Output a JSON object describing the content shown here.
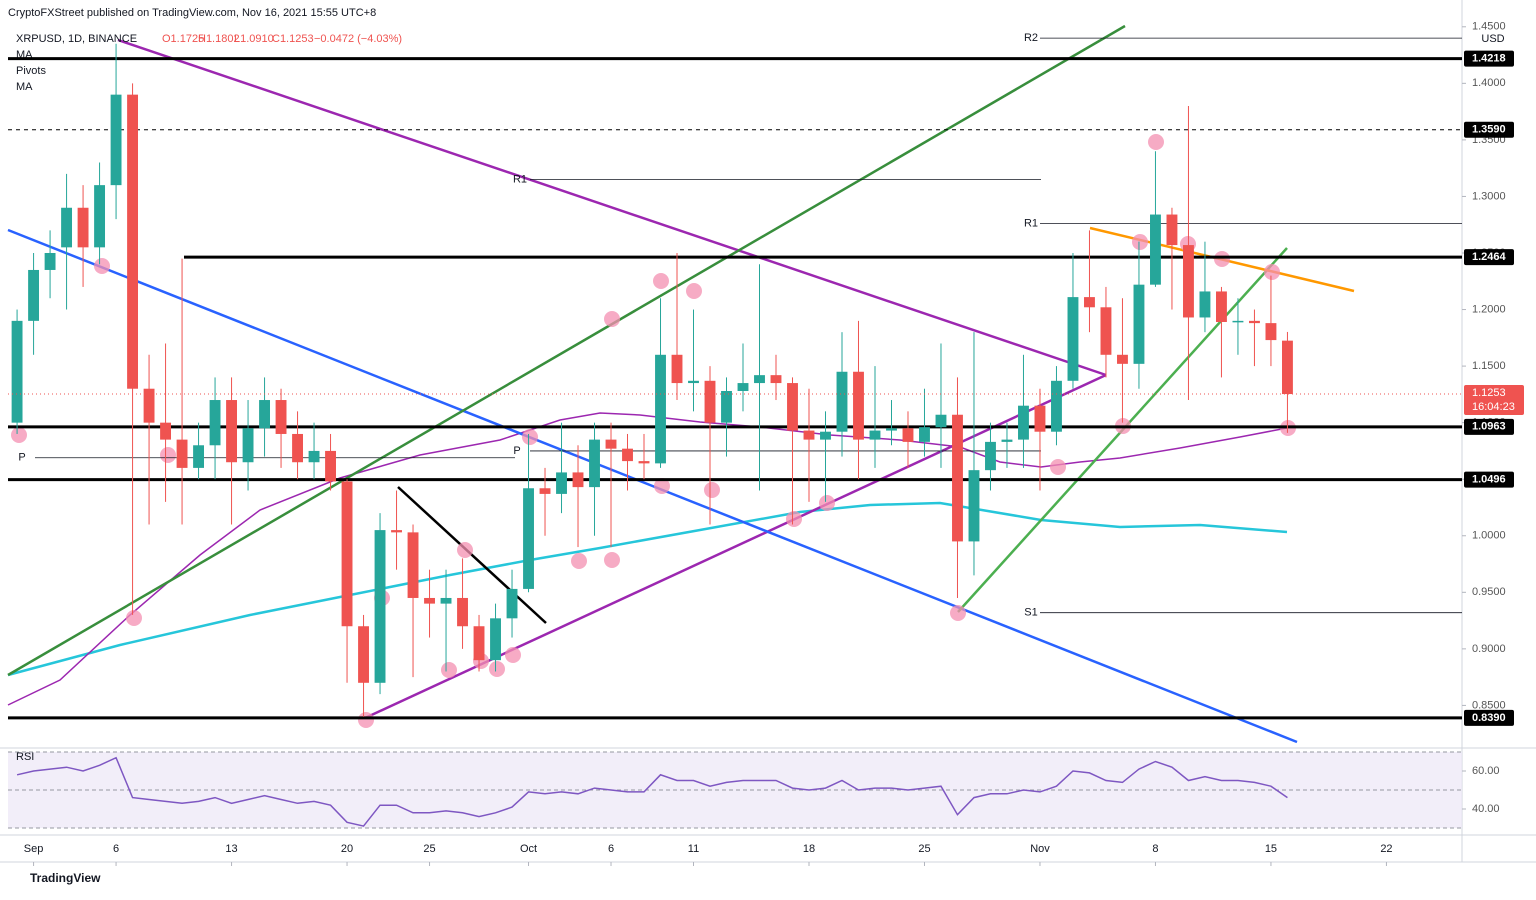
{
  "header": {
    "publisher": "CryptoFXStreet published on TradingView.com, Nov 16, 2021 15:55 UTC+8",
    "symbol": "XRPUSD, 1D, BINANCE",
    "open": "O1.1725",
    "high": "H1.1802",
    "low": "L1.0910",
    "close": "C1.1253",
    "change": "−0.0472 (−4.03%)",
    "indicators": [
      "MA",
      "Pivots",
      "MA"
    ],
    "currency": "USD",
    "footer": "TradingView"
  },
  "chart_data": [
    {
      "type": "candlestick",
      "title": "XRPUSD",
      "up_color": "#26a69a",
      "down_color": "#ef5350",
      "open": [
        1.1,
        1.19,
        1.235,
        1.255,
        1.29,
        1.255,
        1.31,
        1.39,
        1.13,
        1.1,
        1.085,
        1.06,
        1.08,
        1.12,
        1.065,
        1.095,
        1.12,
        1.09,
        1.065,
        1.075,
        1.048,
        0.92,
        0.87,
        1.005,
        1.003,
        0.945,
        0.94,
        0.945,
        0.92,
        0.89,
        0.927,
        0.953,
        1.042,
        1.037,
        1.056,
        1.043,
        1.085,
        1.077,
        1.066,
        1.064,
        1.16,
        1.135,
        1.137,
        1.1,
        1.128,
        1.135,
        1.142,
        1.135,
        1.093,
        1.085,
        1.092,
        1.145,
        1.085,
        1.093,
        1.095,
        1.083,
        1.096,
        1.107,
        0.995,
        1.058,
        1.083,
        1.085,
        1.115,
        1.092,
        1.137,
        1.211,
        1.202,
        1.16,
        1.152,
        1.222,
        1.284,
        1.257,
        1.193,
        1.216,
        1.189,
        1.19,
        1.188,
        1.1725
      ],
      "high": [
        1.2,
        1.25,
        1.27,
        1.32,
        1.31,
        1.33,
        1.435,
        1.4,
        1.16,
        1.17,
        1.245,
        1.1,
        1.14,
        1.14,
        1.12,
        1.14,
        1.13,
        1.11,
        1.1,
        1.09,
        1.05,
        0.93,
        1.02,
        1.04,
        1.01,
        0.97,
        0.97,
        0.98,
        0.93,
        0.94,
        0.97,
        1.09,
        1.06,
        1.1,
        1.08,
        1.1,
        1.1,
        1.09,
        1.09,
        1.21,
        1.25,
        1.2,
        1.15,
        1.14,
        1.17,
        1.24,
        1.16,
        1.14,
        1.13,
        1.11,
        1.18,
        1.19,
        1.15,
        1.12,
        1.11,
        1.13,
        1.17,
        1.14,
        1.18,
        1.1,
        1.1,
        1.16,
        1.13,
        1.15,
        1.25,
        1.27,
        1.22,
        1.21,
        1.26,
        1.34,
        1.29,
        1.38,
        1.26,
        1.22,
        1.21,
        1.2,
        1.23,
        1.1802
      ],
      "low": [
        1.09,
        1.16,
        1.21,
        1.2,
        1.22,
        1.24,
        1.28,
        0.93,
        1.01,
        1.03,
        1.01,
        1.05,
        1.05,
        1.01,
        1.04,
        1.07,
        1.06,
        1.05,
        1.05,
        1.04,
        0.87,
        0.84,
        0.86,
        0.97,
        0.875,
        0.91,
        0.88,
        0.9,
        0.88,
        0.88,
        0.91,
        0.95,
        1.0,
        1.02,
        0.99,
        1.0,
        0.99,
        1.04,
        1.05,
        1.06,
        1.12,
        1.11,
        1.01,
        1.07,
        1.11,
        1.04,
        1.12,
        1.01,
        1.03,
        1.03,
        1.07,
        1.05,
        1.06,
        1.08,
        1.06,
        1.07,
        1.06,
        0.945,
        0.965,
        1.04,
        1.06,
        1.06,
        1.04,
        1.08,
        1.13,
        1.18,
        1.14,
        1.1,
        1.13,
        1.22,
        1.2,
        1.12,
        1.18,
        1.14,
        1.16,
        1.15,
        1.15,
        1.091
      ],
      "close": [
        1.19,
        1.235,
        1.25,
        1.29,
        1.255,
        1.31,
        1.39,
        1.13,
        1.1,
        1.085,
        1.06,
        1.08,
        1.12,
        1.065,
        1.095,
        1.12,
        1.09,
        1.065,
        1.075,
        1.048,
        0.92,
        0.87,
        1.005,
        1.003,
        0.945,
        0.94,
        0.945,
        0.92,
        0.89,
        0.927,
        0.953,
        1.042,
        1.037,
        1.056,
        1.043,
        1.085,
        1.077,
        1.066,
        1.064,
        1.16,
        1.135,
        1.137,
        1.1,
        1.128,
        1.135,
        1.142,
        1.135,
        1.093,
        1.085,
        1.092,
        1.145,
        1.085,
        1.093,
        1.095,
        1.083,
        1.096,
        1.107,
        0.995,
        1.058,
        1.083,
        1.085,
        1.115,
        1.092,
        1.137,
        1.211,
        1.202,
        1.16,
        1.152,
        1.222,
        1.284,
        1.257,
        1.193,
        1.216,
        1.189,
        1.19,
        1.188,
        1.173,
        1.1253
      ],
      "xlim": [
        -0.55,
        87.58
      ],
      "xticks": [
        {
          "value": 1,
          "label": "Sep"
        },
        {
          "value": 6,
          "label": "6"
        },
        {
          "value": 13,
          "label": "13"
        },
        {
          "value": 20,
          "label": "20"
        },
        {
          "value": 25,
          "label": "25"
        },
        {
          "value": 31,
          "label": "Oct"
        },
        {
          "value": 36,
          "label": "6"
        },
        {
          "value": 41,
          "label": "11"
        },
        {
          "value": 48,
          "label": "18"
        },
        {
          "value": 55,
          "label": "25"
        },
        {
          "value": 62,
          "label": "Nov"
        },
        {
          "value": 69,
          "label": "8"
        },
        {
          "value": 76,
          "label": "15"
        },
        {
          "value": 83,
          "label": "22"
        }
      ],
      "ylim": [
        0.815,
        1.456
      ],
      "yticks": [
        {
          "value": 0.85,
          "label": "0.8500"
        },
        {
          "value": 0.9,
          "label": "0.9000"
        },
        {
          "value": 0.95,
          "label": "0.9500"
        },
        {
          "value": 1.0,
          "label": "1.0000"
        },
        {
          "value": 1.05,
          "label": "1.0500"
        },
        {
          "value": 1.1,
          "label": "1.1000"
        },
        {
          "value": 1.15,
          "label": "1.1500"
        },
        {
          "value": 1.2,
          "label": "1.2000"
        },
        {
          "value": 1.25,
          "label": "1.2500"
        },
        {
          "value": 1.3,
          "label": "1.3000"
        },
        {
          "value": 1.35,
          "label": "1.3500"
        },
        {
          "value": 1.4,
          "label": "1.4000"
        },
        {
          "value": 1.45,
          "label": "1.4500"
        }
      ],
      "levels": [
        {
          "value": 1.4218,
          "label": "1.4218"
        },
        {
          "value": 1.359,
          "label": "1.3590"
        },
        {
          "value": 1.2464,
          "label": "1.2464"
        },
        {
          "value": 1.0963,
          "label": "1.0963"
        },
        {
          "value": 1.0496,
          "label": "1.0496"
        },
        {
          "value": 0.839,
          "label": "0.8390"
        }
      ],
      "pivots": [
        {
          "name": "R2",
          "value": 1.44
        },
        {
          "name": "R1",
          "value": 1.315
        },
        {
          "name": "R1",
          "value": 1.276
        },
        {
          "name": "P",
          "value": 1.069
        },
        {
          "name": "P",
          "value": 1.075
        },
        {
          "name": "S1",
          "value": 0.932
        }
      ],
      "last_price": {
        "value": 1.1253,
        "label": "1.1253"
      },
      "countdown": "16:04:23"
    },
    {
      "type": "line",
      "title": "RSI",
      "color": "#7e57c2",
      "values": [
        58,
        60,
        61,
        62,
        60,
        63,
        67,
        46,
        45,
        44,
        43,
        44,
        46,
        43,
        45,
        47,
        45,
        43,
        44,
        42,
        33,
        31,
        42,
        42,
        38,
        38,
        39,
        38,
        36,
        38,
        41,
        49,
        48,
        49,
        48,
        51,
        50,
        49,
        49,
        58,
        55,
        55,
        52,
        54,
        55,
        55,
        55,
        51,
        50,
        51,
        55,
        50,
        51,
        51,
        50,
        51,
        52,
        37,
        46,
        48,
        48,
        50,
        49,
        52,
        60,
        59,
        55,
        54,
        61,
        65,
        62,
        55,
        57,
        55,
        55,
        54,
        52,
        46
      ],
      "ylim": [
        30,
        70
      ],
      "yticks": [
        {
          "value": 60,
          "label": "60.00"
        },
        {
          "value": 40,
          "label": "40.00"
        }
      ]
    }
  ]
}
